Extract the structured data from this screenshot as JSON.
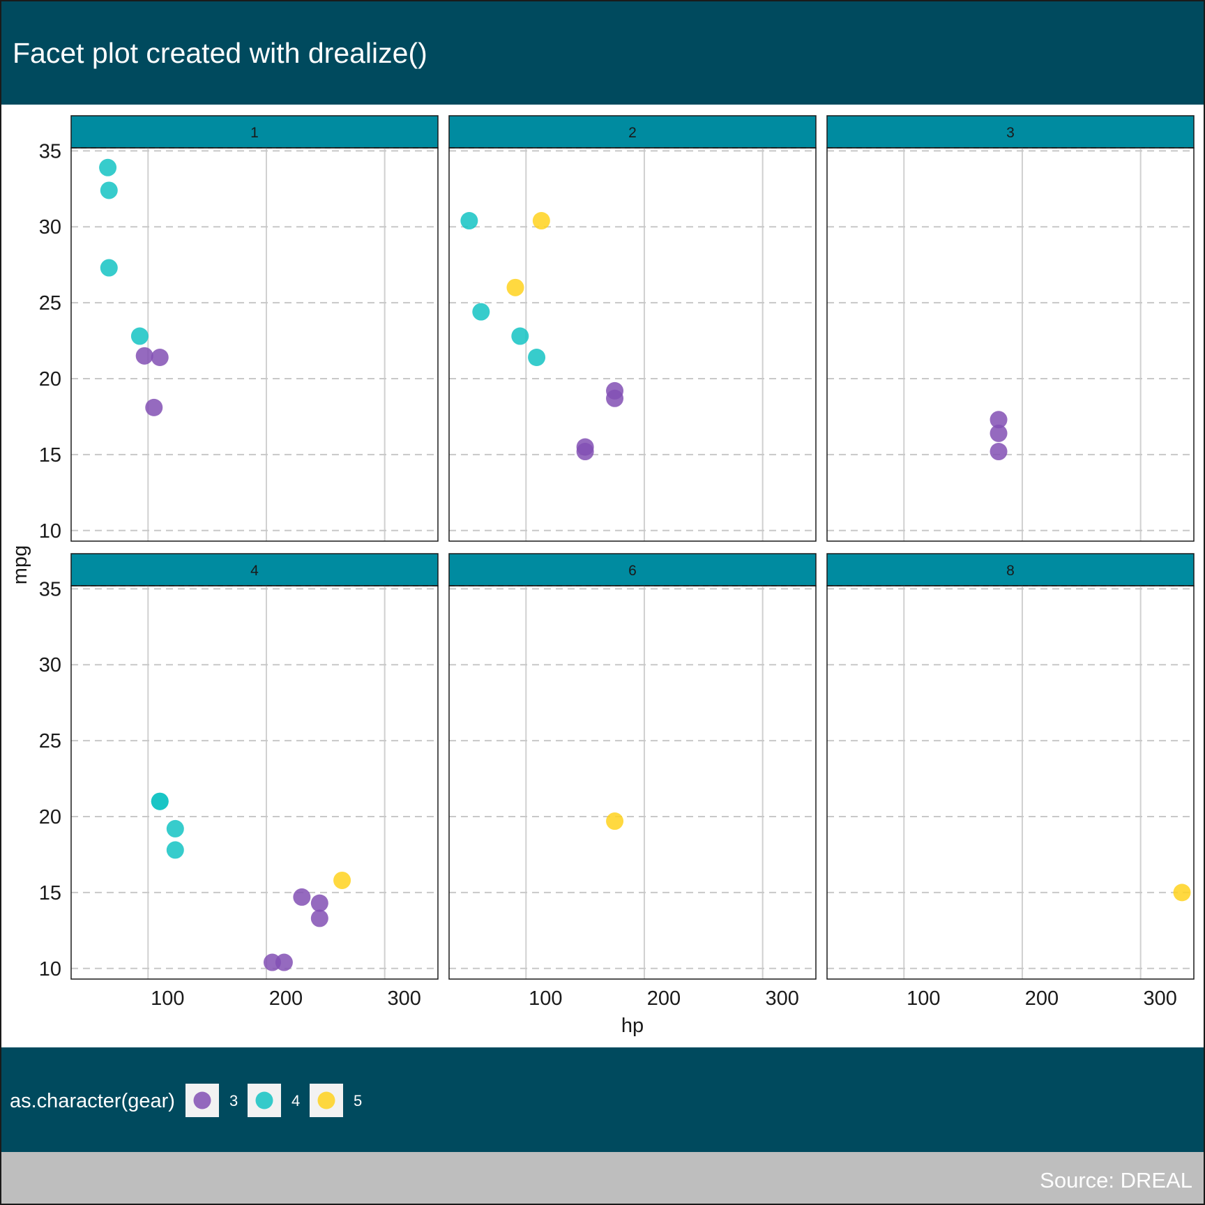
{
  "colors": {
    "header_bg": "#004a5e",
    "strip_bg": "#008ba0",
    "caption_bg": "#bebebe",
    "series": {
      "3": "#8250b4",
      "4": "#14c3c3",
      "5": "#ffd21e"
    }
  },
  "chart_data": {
    "type": "scatter",
    "title": "Facet plot created with drealize()",
    "xlabel": "hp",
    "ylabel": "mpg",
    "xlim": [
      35,
      345
    ],
    "ylim": [
      9.3,
      35.2
    ],
    "xticks": [
      "100",
      "200",
      "300"
    ],
    "xtick_values": [
      100,
      200,
      300
    ],
    "yticks": [
      "10",
      "15",
      "20",
      "25",
      "30",
      "35"
    ],
    "ytick_values": [
      10,
      15,
      20,
      25,
      30,
      35
    ],
    "grid": {
      "vertical": "solid",
      "horizontal": "dashed"
    },
    "legend": {
      "title": "as.character(gear)",
      "position": "bottom",
      "items": [
        "3",
        "4",
        "5"
      ]
    },
    "caption": "Source: DREAL",
    "facets": [
      {
        "label": "1",
        "points": [
          {
            "x": 66,
            "y": 33.9,
            "gear": "4"
          },
          {
            "x": 67,
            "y": 32.4,
            "gear": "4"
          },
          {
            "x": 67,
            "y": 27.3,
            "gear": "4"
          },
          {
            "x": 93,
            "y": 22.8,
            "gear": "4"
          },
          {
            "x": 97,
            "y": 21.5,
            "gear": "3"
          },
          {
            "x": 110,
            "y": 21.4,
            "gear": "3"
          },
          {
            "x": 105,
            "y": 18.1,
            "gear": "3"
          }
        ]
      },
      {
        "label": "2",
        "points": [
          {
            "x": 52,
            "y": 30.4,
            "gear": "4"
          },
          {
            "x": 113,
            "y": 30.4,
            "gear": "5"
          },
          {
            "x": 91,
            "y": 26.0,
            "gear": "5"
          },
          {
            "x": 62,
            "y": 24.4,
            "gear": "4"
          },
          {
            "x": 95,
            "y": 22.8,
            "gear": "4"
          },
          {
            "x": 109,
            "y": 21.4,
            "gear": "4"
          },
          {
            "x": 175,
            "y": 19.2,
            "gear": "3"
          },
          {
            "x": 175,
            "y": 18.7,
            "gear": "3"
          },
          {
            "x": 150,
            "y": 15.5,
            "gear": "3"
          },
          {
            "x": 150,
            "y": 15.2,
            "gear": "3"
          }
        ]
      },
      {
        "label": "3",
        "points": [
          {
            "x": 180,
            "y": 17.3,
            "gear": "3"
          },
          {
            "x": 180,
            "y": 16.4,
            "gear": "3"
          },
          {
            "x": 180,
            "y": 15.2,
            "gear": "3"
          }
        ]
      },
      {
        "label": "4",
        "points": [
          {
            "x": 110,
            "y": 21.0,
            "gear": "4"
          },
          {
            "x": 110,
            "y": 21.0,
            "gear": "4"
          },
          {
            "x": 123,
            "y": 19.2,
            "gear": "4"
          },
          {
            "x": 123,
            "y": 17.8,
            "gear": "4"
          },
          {
            "x": 264,
            "y": 15.8,
            "gear": "5"
          },
          {
            "x": 230,
            "y": 14.7,
            "gear": "3"
          },
          {
            "x": 245,
            "y": 14.3,
            "gear": "3"
          },
          {
            "x": 245,
            "y": 13.3,
            "gear": "3"
          },
          {
            "x": 205,
            "y": 10.4,
            "gear": "3"
          },
          {
            "x": 215,
            "y": 10.4,
            "gear": "3"
          }
        ]
      },
      {
        "label": "6",
        "points": [
          {
            "x": 175,
            "y": 19.7,
            "gear": "5"
          }
        ]
      },
      {
        "label": "8",
        "points": [
          {
            "x": 335,
            "y": 15.0,
            "gear": "5"
          }
        ]
      }
    ]
  }
}
